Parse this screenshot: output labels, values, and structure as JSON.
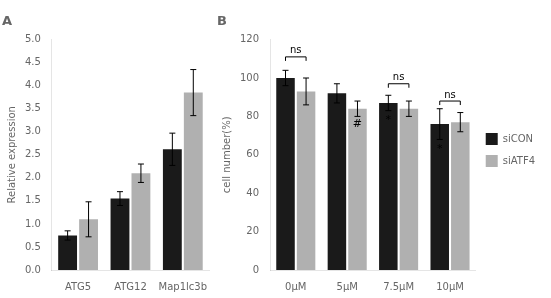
{
  "chart_data": [
    {
      "type": "bar",
      "title": "A",
      "categories": [
        "ATG5",
        "ATG12",
        "Map1lc3b"
      ],
      "series": [
        {
          "name": "siCON",
          "color": "#1a1a1a",
          "values": [
            0.75,
            1.55,
            2.62
          ],
          "errors": [
            0.1,
            0.15,
            0.35
          ]
        },
        {
          "name": "siATF4",
          "color": "#b0b0b0",
          "values": [
            1.1,
            2.1,
            3.85
          ],
          "errors": [
            0.38,
            0.2,
            0.5
          ]
        }
      ],
      "y_label": "Relative expression",
      "ylim": [
        0,
        5
      ],
      "yticks": [
        {
          "value": 0,
          "label": "0.0"
        },
        0.5,
        {
          "value": 1,
          "label": "1.0"
        },
        1.5,
        {
          "value": 2,
          "label": "2.0"
        },
        2.5,
        {
          "value": 3,
          "label": "3.0"
        },
        3.5,
        {
          "value": 4,
          "label": "4.0"
        },
        4.5,
        {
          "value": 5,
          "label": "5.0"
        }
      ],
      "grid": false
    },
    {
      "type": "bar",
      "title": "B",
      "categories": [
        "0μM",
        "5μM",
        "7.5μM",
        "10μM"
      ],
      "series": [
        {
          "name": "siCON",
          "color": "#1a1a1a",
          "values": [
            100,
            92,
            87,
            76
          ],
          "errors": [
            4,
            5,
            4,
            8
          ]
        },
        {
          "name": "siATF4",
          "color": "#b0b0b0",
          "values": [
            93,
            84,
            84,
            77
          ],
          "errors": [
            7,
            4,
            4,
            5
          ]
        }
      ],
      "y_label": "cell number(%)",
      "ylim": [
        0,
        120
      ],
      "yticks": [
        0,
        20,
        40,
        60,
        80,
        100,
        120
      ],
      "grid": false,
      "legend": "right",
      "annotations": [
        {
          "text": "ns",
          "category": "0μM",
          "y": 111
        },
        {
          "text": "ns",
          "category": "7.5μM",
          "y": 97
        },
        {
          "text": "ns",
          "category": "10μM",
          "y": 88
        },
        {
          "text": "#",
          "category": "5μM",
          "series": "siATF4",
          "y": 80
        },
        {
          "text": "*",
          "category": "7.5μM",
          "series": "siCON",
          "y": 82
        },
        {
          "text": "*",
          "category": "10μM",
          "series": "siCON",
          "y": 67
        }
      ]
    }
  ]
}
